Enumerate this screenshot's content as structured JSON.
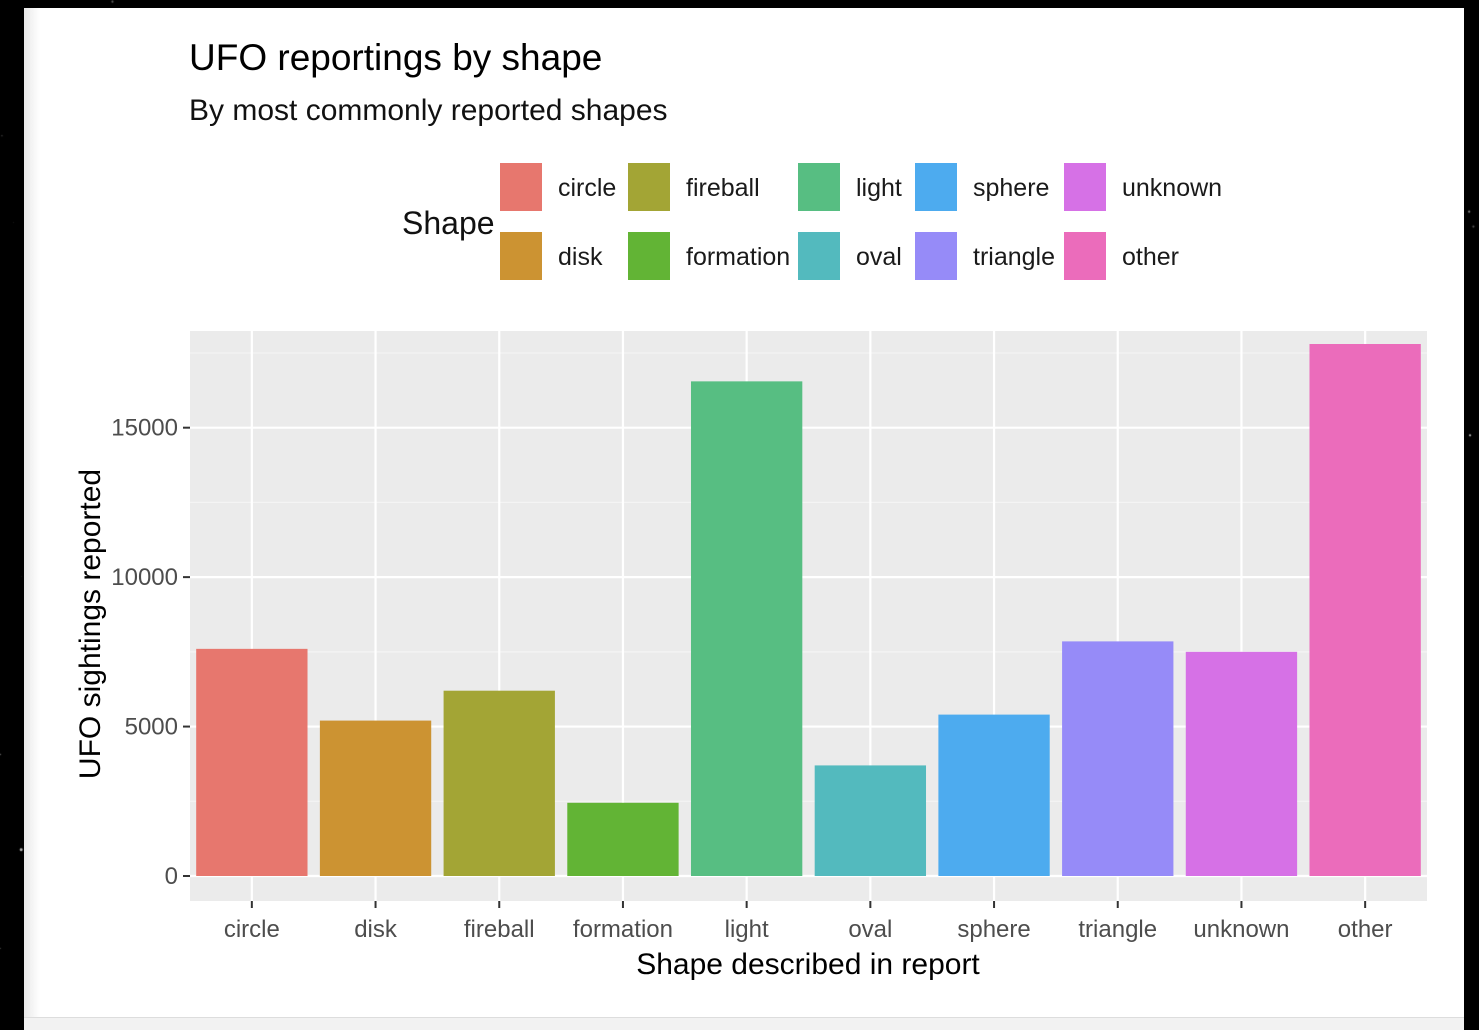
{
  "chart_data": {
    "type": "bar",
    "title": "UFO reportings by shape",
    "subtitle": "By most commonly reported shapes",
    "xlabel": "Shape described in report",
    "ylabel": "UFO sightings reported",
    "categories": [
      "circle",
      "disk",
      "fireball",
      "formation",
      "light",
      "oval",
      "sphere",
      "triangle",
      "unknown",
      "other"
    ],
    "values": [
      7600,
      5200,
      6200,
      2450,
      16550,
      3700,
      5400,
      7850,
      7500,
      17800
    ],
    "colors": [
      "#E7776E",
      "#CC9332",
      "#A3A535",
      "#62B435",
      "#57BE82",
      "#53BABE",
      "#4DABEF",
      "#968BF8",
      "#D671E6",
      "#EB6CBB"
    ],
    "ylim": [
      0,
      18500
    ],
    "yticks": [
      0,
      5000,
      10000,
      15000
    ],
    "grid": true,
    "legend": {
      "title": "Shape",
      "position": "top",
      "entries": [
        "circle",
        "disk",
        "fireball",
        "formation",
        "light",
        "oval",
        "sphere",
        "triangle",
        "unknown",
        "other"
      ]
    }
  }
}
